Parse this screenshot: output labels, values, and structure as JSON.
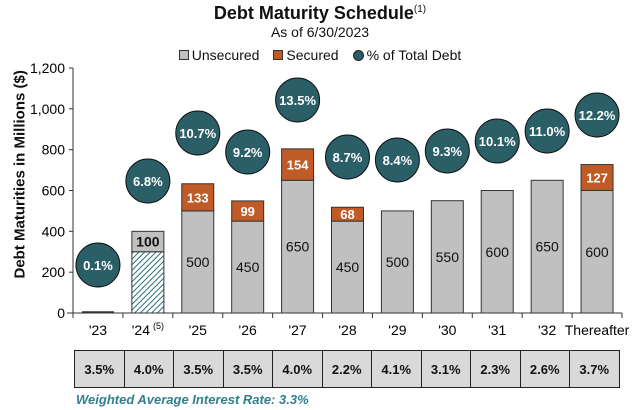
{
  "title": "Debt Maturity Schedule",
  "title_footnote": "(1)",
  "subtitle": "As of 6/30/2023",
  "legend": [
    {
      "label": "Unsecured",
      "color": "#C0C0C0",
      "shape": "square"
    },
    {
      "label": "Secured",
      "color": "#BF5B27",
      "shape": "square"
    },
    {
      "label": "% of Total Debt",
      "color": "#2A5F68",
      "shape": "circle"
    }
  ],
  "colors": {
    "unsecured": "#C0C0C0",
    "secured": "#BF5B27",
    "circle": "#2A5F68",
    "hatch": "#2A6F78",
    "wavg_text": "#2F7F8C",
    "table_bg": "#D9D9D9"
  },
  "weighted_average": "Weighted Average Interest Rate: 3.3%",
  "chart_data": {
    "type": "bar",
    "title": "Debt Maturity Schedule",
    "subtitle": "As of 6/30/2023",
    "xlabel": "",
    "ylabel": "Debt Maturities in Millions ($)",
    "ylim": [
      0,
      1200
    ],
    "yticks": [
      "0",
      "200",
      "400",
      "600",
      "800",
      "1,000",
      "1,200"
    ],
    "categories": [
      "'23",
      "'24",
      "'25",
      "'26",
      "'27",
      "'28",
      "'29",
      "'30",
      "'31",
      "'32",
      "Thereafter"
    ],
    "category_footnotes": {
      "'24": "(5)"
    },
    "series": [
      {
        "name": "Unsecured",
        "values": [
          0,
          100,
          500,
          450,
          650,
          450,
          500,
          550,
          600,
          650,
          600
        ],
        "labels": [
          "",
          "100",
          "500",
          "450",
          "650",
          "450",
          "500",
          "550",
          "600",
          "650",
          "600"
        ]
      },
      {
        "name": "Unsecured (hatched, '24)",
        "values": [
          0,
          300,
          0,
          0,
          0,
          0,
          0,
          0,
          0,
          0,
          0
        ]
      },
      {
        "name": "Secured",
        "values": [
          0,
          0,
          133,
          99,
          154,
          68,
          0,
          0,
          0,
          0,
          127
        ],
        "labels": [
          "",
          "",
          "133",
          "99",
          "154",
          "68",
          "",
          "",
          "",
          "",
          "127"
        ]
      },
      {
        "name": "% of Total Debt",
        "values": [
          "0.1%",
          "6.8%",
          "10.7%",
          "9.2%",
          "13.5%",
          "8.7%",
          "8.4%",
          "9.3%",
          "10.1%",
          "11.0%",
          "12.2%"
        ]
      }
    ],
    "interest_rates": [
      "3.5%",
      "4.0%",
      "3.5%",
      "3.5%",
      "4.0%",
      "2.2%",
      "4.1%",
      "3.1%",
      "2.3%",
      "2.6%",
      "3.7%"
    ],
    "weighted_average_interest_rate": "3.3%",
    "legend_position": "top",
    "grid": false
  }
}
